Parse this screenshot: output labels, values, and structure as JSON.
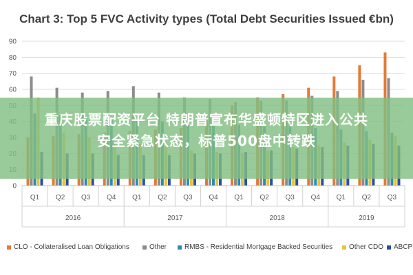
{
  "chart_data": {
    "type": "bar",
    "title": "Chart 3: Top 5 FVC Activity types (Total Debt Securities Issued €bn)",
    "xlabel": "",
    "ylabel": "",
    "ylim": [
      0,
      90
    ],
    "yticks": [
      "0",
      "10",
      "20",
      "30",
      "40",
      "50",
      "60",
      "70",
      "80",
      "90"
    ],
    "grid": true,
    "legend_position": "bottom",
    "categories": [
      "Q1",
      "Q2",
      "Q3",
      "Q4",
      "Q1",
      "Q2",
      "Q3",
      "Q4",
      "Q1",
      "Q2",
      "Q3",
      "Q4",
      "Q1",
      "Q2",
      "Q3"
    ],
    "groups": [
      {
        "label": "2016",
        "count": 4
      },
      {
        "label": "2017",
        "count": 4
      },
      {
        "label": "2018",
        "count": 4
      },
      {
        "label": "2019",
        "count": 3
      }
    ],
    "series": [
      {
        "name": "CLO - Collateralised Loan Obligations",
        "color": "#e07b39",
        "values": [
          30,
          31,
          32,
          33,
          34,
          35,
          36,
          43,
          50,
          55,
          57,
          61,
          68,
          75,
          83
        ]
      },
      {
        "name": "Other",
        "color": "#8c8c8c",
        "values": [
          68,
          61,
          58,
          59,
          62,
          58,
          55,
          54,
          52,
          53,
          53,
          56,
          59,
          66,
          67
        ]
      },
      {
        "name": "RMBS - Residential Mortgage Backed Securities",
        "color": "#2e8bb0",
        "values": [
          45,
          44,
          42,
          42,
          41,
          40,
          39,
          38,
          38,
          37,
          37,
          36,
          35,
          34,
          33
        ]
      },
      {
        "name": "Other CDO",
        "color": "#e8c23c",
        "values": [
          55,
          33,
          30,
          28,
          26,
          24,
          22,
          21,
          20,
          22,
          24,
          25,
          27,
          29,
          31
        ]
      },
      {
        "name": "ABCP",
        "color": "#2b4f9c",
        "values": [
          21,
          20,
          20,
          19,
          19,
          19,
          20,
          20,
          21,
          22,
          23,
          24,
          25,
          26,
          25
        ]
      }
    ]
  },
  "overlay": {
    "line1": "重庆股票配资平台 特朗普宣布华盛顿特区进入公共",
    "line2": "安全紧急状态，标普500盘中转跌"
  }
}
